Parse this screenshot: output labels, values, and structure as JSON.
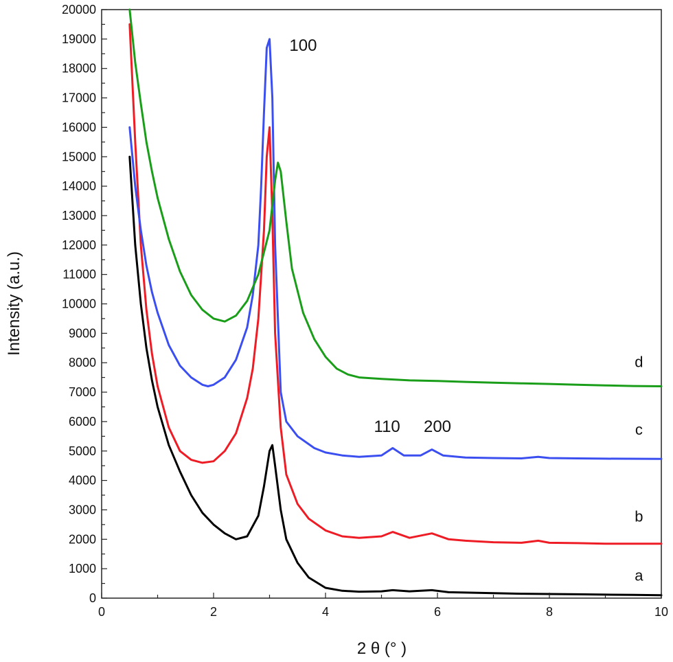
{
  "chart_data": {
    "type": "line",
    "title": "",
    "xlabel": "2 θ  (°  )",
    "ylabel": "Intensity (a.u.)",
    "xlim": [
      0,
      10
    ],
    "ylim": [
      0,
      20000
    ],
    "x_ticks": [
      0,
      2,
      4,
      6,
      8,
      10
    ],
    "y_ticks": [
      0,
      1000,
      2000,
      3000,
      4000,
      5000,
      6000,
      7000,
      8000,
      9000,
      10000,
      11000,
      12000,
      13000,
      14000,
      15000,
      16000,
      17000,
      18000,
      19000,
      20000
    ],
    "grid": false,
    "legend": "none",
    "annotations": [
      {
        "text": "100",
        "x": 3.6,
        "y": 18600
      },
      {
        "text": "110",
        "x": 5.1,
        "y": 5650
      },
      {
        "text": "200",
        "x": 6.0,
        "y": 5650
      }
    ],
    "series": [
      {
        "name": "a",
        "color": "#000000",
        "label_at": [
          9.6,
          600
        ],
        "x": [
          0.5,
          0.6,
          0.7,
          0.8,
          0.9,
          1.0,
          1.2,
          1.4,
          1.6,
          1.8,
          2.0,
          2.2,
          2.4,
          2.6,
          2.8,
          2.9,
          3.0,
          3.05,
          3.1,
          3.2,
          3.3,
          3.5,
          3.7,
          4.0,
          4.3,
          4.6,
          5.0,
          5.2,
          5.5,
          5.9,
          6.2,
          6.5,
          7.0,
          7.5,
          8.0,
          8.5,
          9.0,
          9.5,
          10.0
        ],
        "y": [
          15000,
          12000,
          10000,
          8500,
          7400,
          6500,
          5200,
          4300,
          3500,
          2900,
          2500,
          2200,
          2000,
          2100,
          2800,
          3800,
          5000,
          5200,
          4500,
          3000,
          2000,
          1200,
          700,
          350,
          250,
          220,
          230,
          270,
          230,
          270,
          200,
          190,
          170,
          150,
          140,
          130,
          120,
          110,
          100
        ]
      },
      {
        "name": "b",
        "color": "#ee1c25",
        "label_at": [
          9.6,
          2600
        ],
        "x": [
          0.5,
          0.6,
          0.7,
          0.8,
          0.9,
          1.0,
          1.2,
          1.4,
          1.6,
          1.8,
          2.0,
          2.2,
          2.4,
          2.6,
          2.7,
          2.8,
          2.9,
          2.95,
          3.0,
          3.05,
          3.1,
          3.2,
          3.3,
          3.5,
          3.7,
          4.0,
          4.3,
          4.6,
          5.0,
          5.2,
          5.5,
          5.9,
          6.2,
          6.5,
          7.0,
          7.5,
          7.8,
          8.0,
          8.5,
          9.0,
          10.0
        ],
        "y": [
          19500,
          15500,
          12000,
          9800,
          8300,
          7200,
          5800,
          5000,
          4700,
          4600,
          4650,
          5000,
          5600,
          6800,
          7800,
          9500,
          12500,
          15000,
          16000,
          13000,
          9000,
          5800,
          4200,
          3200,
          2700,
          2300,
          2100,
          2050,
          2100,
          2250,
          2050,
          2200,
          2000,
          1950,
          1900,
          1880,
          1950,
          1880,
          1870,
          1850,
          1850
        ]
      },
      {
        "name": "c",
        "color": "#3b4ff0",
        "label_at": [
          9.6,
          5550
        ],
        "x": [
          0.5,
          0.6,
          0.7,
          0.8,
          0.9,
          1.0,
          1.2,
          1.4,
          1.6,
          1.8,
          1.9,
          2.0,
          2.2,
          2.4,
          2.6,
          2.7,
          2.8,
          2.85,
          2.9,
          2.95,
          3.0,
          3.05,
          3.1,
          3.2,
          3.3,
          3.5,
          3.8,
          4.0,
          4.3,
          4.6,
          5.0,
          5.2,
          5.4,
          5.7,
          5.9,
          6.1,
          6.5,
          7.0,
          7.5,
          7.8,
          8.0,
          8.5,
          9.0,
          10.0
        ],
        "y": [
          16000,
          14000,
          12500,
          11300,
          10400,
          9700,
          8600,
          7900,
          7500,
          7250,
          7200,
          7250,
          7500,
          8100,
          9200,
          10300,
          12000,
          14000,
          16500,
          18700,
          19000,
          17000,
          12000,
          7000,
          6000,
          5500,
          5100,
          4950,
          4850,
          4800,
          4850,
          5100,
          4850,
          4850,
          5050,
          4850,
          4780,
          4760,
          4750,
          4800,
          4760,
          4750,
          4740,
          4730
        ]
      },
      {
        "name": "d",
        "color": "#1a9e1a",
        "label_at": [
          9.6,
          7850
        ],
        "x": [
          0.5,
          0.6,
          0.7,
          0.8,
          0.9,
          1.0,
          1.2,
          1.4,
          1.6,
          1.8,
          2.0,
          2.2,
          2.4,
          2.6,
          2.8,
          3.0,
          3.1,
          3.15,
          3.2,
          3.3,
          3.4,
          3.6,
          3.8,
          4.0,
          4.2,
          4.4,
          4.6,
          5.0,
          5.5,
          6.0,
          6.5,
          7.0,
          7.5,
          8.0,
          8.5,
          9.0,
          9.5,
          10.0
        ],
        "y": [
          20000,
          18200,
          16800,
          15500,
          14500,
          13600,
          12200,
          11100,
          10300,
          9800,
          9500,
          9400,
          9600,
          10100,
          11000,
          12500,
          14200,
          14800,
          14500,
          12800,
          11200,
          9700,
          8800,
          8200,
          7800,
          7600,
          7500,
          7450,
          7400,
          7380,
          7350,
          7320,
          7300,
          7280,
          7250,
          7230,
          7210,
          7200
        ]
      }
    ]
  }
}
